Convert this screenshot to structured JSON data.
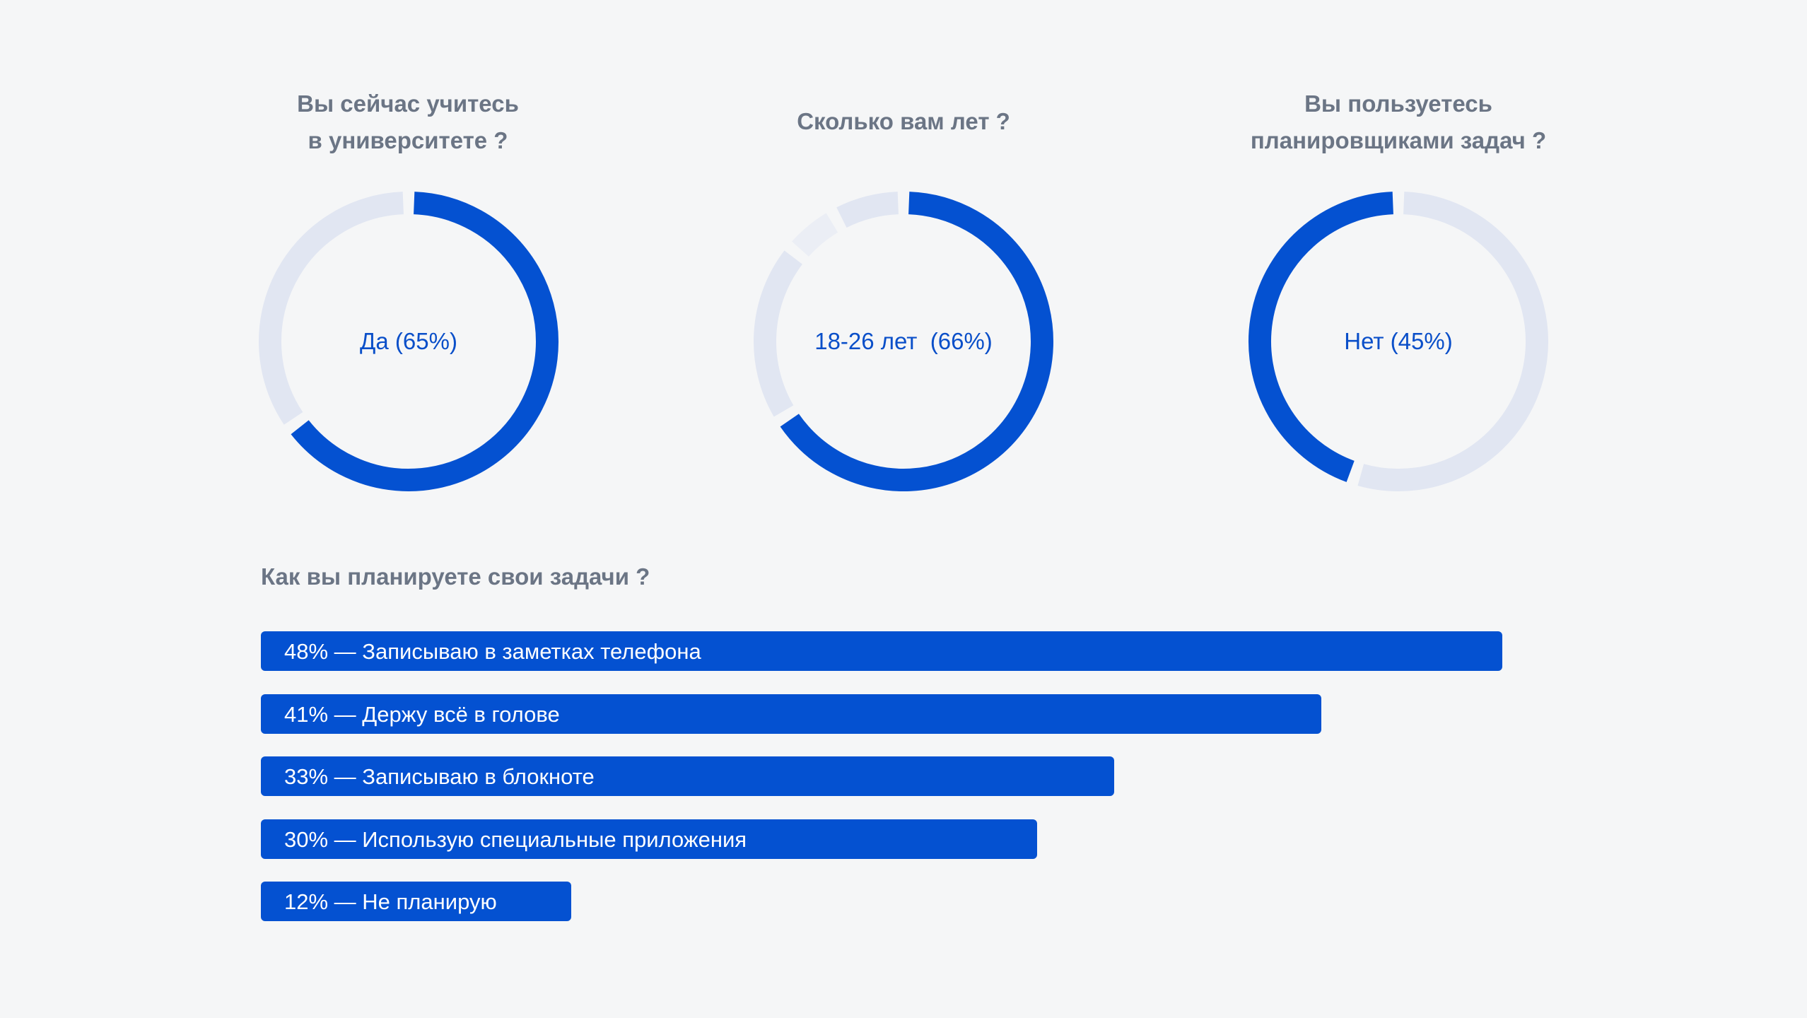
{
  "colors": {
    "background": "#f5f6f7",
    "accent": "#0451d1",
    "track": "#e1e6f2",
    "question_text": "#6b7585",
    "donut_label": "#0a4fc9",
    "bar_text": "#ffffff"
  },
  "chart_data": [
    {
      "type": "pie",
      "variant": "donut",
      "title": "Вы сейчас учитесь\nв университете ?",
      "center_label": "Да (65%)",
      "slices": [
        {
          "label": "Да",
          "value": 65,
          "color": "#0451d1"
        },
        {
          "label": "",
          "value": 35,
          "color": "#e1e6f2"
        }
      ]
    },
    {
      "type": "pie",
      "variant": "donut",
      "title": "Сколько вам лет ?",
      "center_label": "18-26 лет  (66%)",
      "slices": [
        {
          "label": "18-26 лет",
          "value": 66,
          "color": "#0451d1"
        },
        {
          "label": "",
          "value": 20,
          "color": "#e1e6f2"
        },
        {
          "label": "",
          "value": 6,
          "color": "#ebeef5"
        },
        {
          "label": "",
          "value": 8,
          "color": "#e1e6f2"
        }
      ]
    },
    {
      "type": "pie",
      "variant": "donut",
      "title": "Вы пользуетесь\nпланировщиками задач ?",
      "center_label": "Нет (45%)",
      "slices": [
        {
          "label": "",
          "value": 55,
          "color": "#e1e6f2"
        },
        {
          "label": "Нет",
          "value": 45,
          "color": "#0451d1"
        }
      ]
    },
    {
      "type": "bar",
      "orientation": "horizontal",
      "title": "Как вы планируете свои задачи ?",
      "categories": [
        "Записываю в заметках телефона",
        "Держу всё в голове",
        "Записываю в блокноте",
        "Использую специальные приложения",
        "Не планирую"
      ],
      "values": [
        48,
        41,
        33,
        30,
        12
      ],
      "labels": [
        "48% — Записываю в заметках телефона",
        "41% — Держу всё в голове",
        "33% — Записываю в блокноте",
        "30% — Использую специальные приложения",
        "12% — Не планирую"
      ]
    }
  ]
}
